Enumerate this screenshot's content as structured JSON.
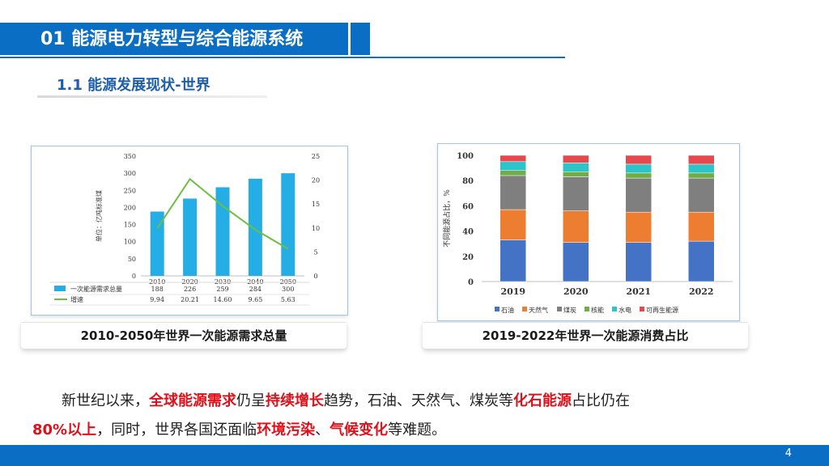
{
  "header": {
    "title": "01 能源电力转型与综合能源系统"
  },
  "subheader": {
    "title": "1.1 能源发展现状-世界"
  },
  "left_chart": {
    "caption": "2010-2050年世界一次能源需求总量",
    "ylabel": "单位：亿吨标准煤",
    "colors": {
      "bar": "#25aee6",
      "line": "#6cbf3f"
    }
  },
  "right_chart": {
    "caption": "2019-2022年世界一次能源消费占比",
    "ylabel": "不同能源占比，%",
    "colors": {
      "石油": "#4472c4",
      "天然气": "#ed7d31",
      "煤炭": "#7f7f7f",
      "核能": "#70ad47",
      "水电": "#2cc4c8",
      "可再生能源": "#e5484d"
    }
  },
  "chart_data": [
    {
      "type": "bar",
      "categories": [
        "2010",
        "2020",
        "2030",
        "2040",
        "2050"
      ],
      "series": [
        {
          "name": "一次能源需求总量",
          "type": "bar",
          "axis": "left",
          "values": [
            188,
            226,
            259,
            284,
            300
          ]
        },
        {
          "name": "增速",
          "type": "line",
          "axis": "right",
          "values": [
            9.94,
            20.21,
            14.6,
            9.65,
            5.63
          ]
        }
      ],
      "table_rows": [
        {
          "label": "一次能源需求总量",
          "values": [
            "188",
            "226",
            "259",
            "284",
            "300"
          ]
        },
        {
          "label": "增速",
          "values": [
            "9.94",
            "20.21",
            "14.60",
            "9.65",
            "5.63"
          ]
        }
      ],
      "ylabel": "单位：亿吨标准煤",
      "ylim": [
        0,
        350
      ],
      "yticks": [
        "0",
        "50",
        "100",
        "150",
        "200",
        "250",
        "300",
        "350"
      ],
      "y2lim": [
        0,
        25
      ],
      "y2ticks": [
        "0",
        "5",
        "10",
        "15",
        "20",
        "25"
      ],
      "title": "2010-2050年世界一次能源需求总量",
      "grid": false
    },
    {
      "type": "bar",
      "stacked": true,
      "categories": [
        "2019",
        "2020",
        "2021",
        "2022"
      ],
      "series": [
        {
          "name": "石油",
          "values": [
            33,
            31,
            31,
            32
          ]
        },
        {
          "name": "天然气",
          "values": [
            24,
            25,
            24,
            23
          ]
        },
        {
          "name": "煤炭",
          "values": [
            27,
            27,
            27,
            27
          ]
        },
        {
          "name": "核能",
          "values": [
            4,
            4,
            4,
            4
          ]
        },
        {
          "name": "水电",
          "values": [
            7,
            7,
            7,
            7
          ]
        },
        {
          "name": "可再生能源",
          "values": [
            5,
            6,
            7,
            7
          ]
        }
      ],
      "ylabel": "不同能源占比，%",
      "ylim": [
        0,
        100
      ],
      "yticks": [
        "0",
        "20",
        "40",
        "60",
        "80",
        "100"
      ],
      "legend": "bottom",
      "title": "2019-2022年世界一次能源消费占比",
      "grid": false
    }
  ],
  "paragraph": {
    "p1": "新世纪以来，",
    "r1": "全球能源需求",
    "p2": "仍呈",
    "r2": "持续增长",
    "p3": "趋势，石油、天然气、煤炭等",
    "r3": "化石能源",
    "p4": "占比仍在",
    "r4": "80%以上",
    "p5": "，同时，世界各国还面临",
    "r5": "环境污染",
    "p6": "、",
    "r6": "气候变化",
    "p7": "等难题。"
  },
  "footer": {
    "page_number": "4"
  }
}
